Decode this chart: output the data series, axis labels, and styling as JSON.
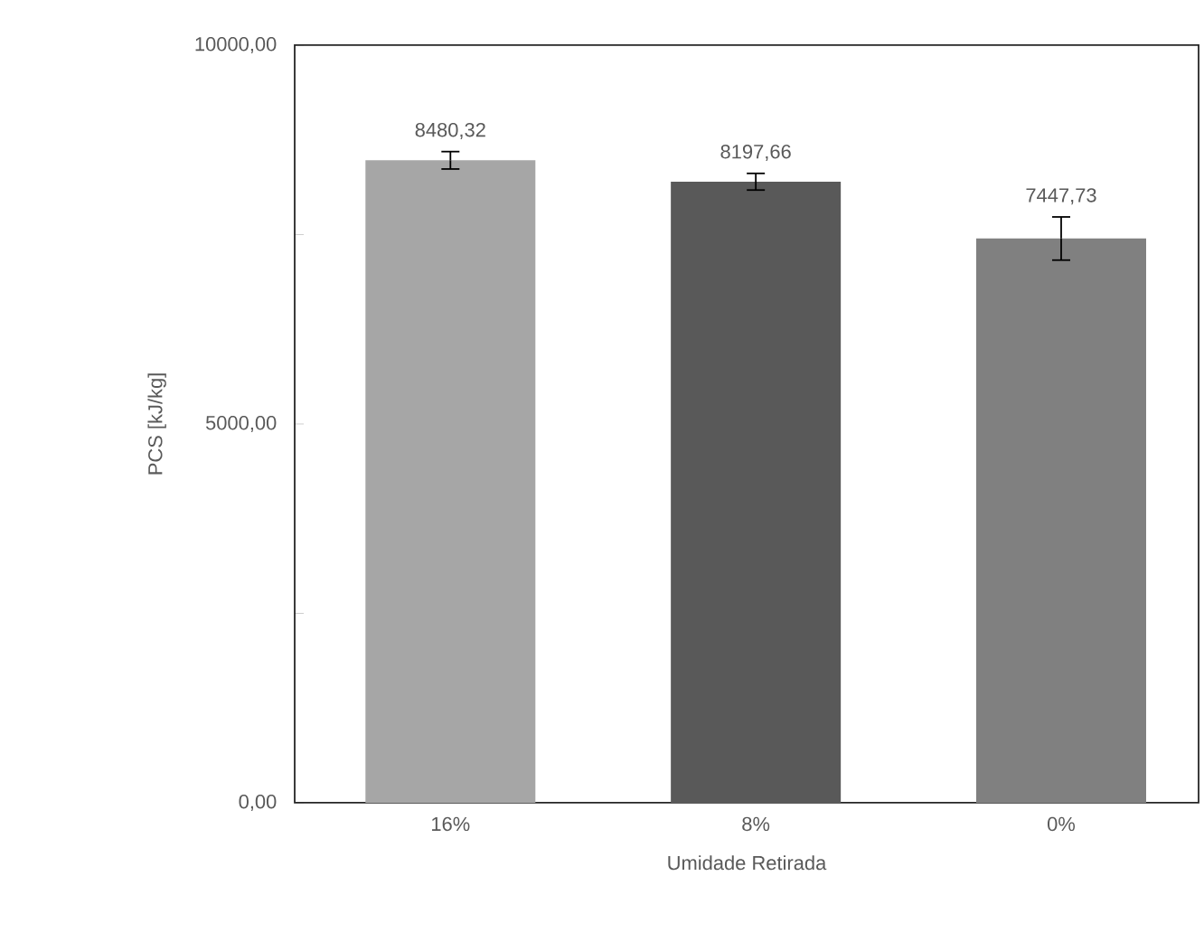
{
  "chart_data": {
    "type": "bar",
    "xlabel": "Umidade Retirada",
    "ylabel": "PCS [kJ/kg]",
    "categories": [
      "16%",
      "8%",
      "0%"
    ],
    "values": [
      8480.32,
      8197.66,
      7447.73
    ],
    "errors": [
      115,
      110,
      285
    ],
    "value_labels": [
      "8480,32",
      "8197,66",
      "7447,73"
    ],
    "colors": [
      "#a6a6a6",
      "#595959",
      "#808080"
    ],
    "ylim": [
      0,
      10000
    ],
    "yticks": [
      {
        "value": 0,
        "label": "0,00"
      },
      {
        "value": 2500,
        "label": null
      },
      {
        "value": 5000,
        "label": "5000,00"
      },
      {
        "value": 7500,
        "label": null
      },
      {
        "value": 10000,
        "label": "10000,00"
      }
    ],
    "grid": false
  }
}
